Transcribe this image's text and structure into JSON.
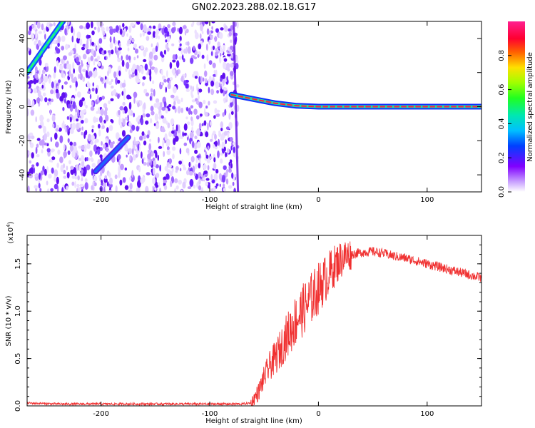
{
  "title": "GN02.2023.288.02.18.G17",
  "chart_data": [
    {
      "type": "heatmap",
      "xlabel": "Height of straight line (km)",
      "ylabel": "Frequency (Hz)",
      "xlim": [
        -268,
        150
      ],
      "ylim": [
        -50,
        50
      ],
      "xticks": [
        -200,
        -100,
        0,
        100
      ],
      "yticks": [
        -40,
        -20,
        0,
        20,
        40
      ],
      "colorbar": {
        "label": "Normalized spectral amplitude",
        "range": [
          0,
          1
        ],
        "ticks": [
          "0.0",
          "0.2",
          "0.4",
          "0.6",
          "0.8"
        ],
        "tick_values": [
          0,
          0.2,
          0.4,
          0.6,
          0.8
        ],
        "colormap": "rainbow"
      },
      "features": [
        {
          "name": "noise",
          "x_range": [
            -268,
            -74
          ],
          "y_range": [
            -50,
            50
          ]
        },
        {
          "x": [
            -268,
            -235
          ],
          "y": [
            20,
            50
          ]
        },
        {
          "x": [
            -205,
            -175
          ],
          "y": [
            -38,
            -18
          ]
        },
        {
          "x": [
            -80,
            -40,
            -20,
            0,
            150
          ],
          "y": [
            7,
            2,
            0.5,
            0,
            0
          ]
        }
      ]
    },
    {
      "type": "line",
      "xlabel": "Height of straight line (km)",
      "ylabel": "SNR (10 * v/v)",
      "yunit_label": "(x10",
      "yunit_exponent": "4",
      "ymultiplier_label": ")",
      "xlim": [
        -268,
        150
      ],
      "ylim": [
        0,
        1.8
      ],
      "xticks": [
        -200,
        -100,
        0,
        100
      ],
      "yticks": [
        0.0,
        0.5,
        1.0,
        1.5
      ],
      "ytick_labels": [
        "0.0",
        "0.5",
        "1.0",
        "1.5"
      ],
      "series": [
        {
          "color": "#f03030",
          "x": [
            -268,
            -240,
            -200,
            -150,
            -100,
            -70,
            -62,
            -55,
            -50,
            -45,
            -40,
            -35,
            -30,
            -25,
            -20,
            -15,
            -10,
            -5,
            0,
            5,
            10,
            15,
            20,
            25,
            30,
            40,
            50,
            60,
            70,
            80,
            90,
            100,
            110,
            120,
            130,
            140,
            150
          ],
          "y": [
            0.03,
            0.02,
            0.02,
            0.02,
            0.02,
            0.02,
            0.03,
            0.15,
            0.3,
            0.42,
            0.5,
            0.6,
            0.72,
            0.82,
            0.92,
            1.0,
            1.08,
            1.16,
            1.24,
            1.32,
            1.4,
            1.48,
            1.54,
            1.58,
            1.6,
            1.62,
            1.63,
            1.61,
            1.58,
            1.56,
            1.53,
            1.5,
            1.47,
            1.44,
            1.41,
            1.38,
            1.35
          ]
        }
      ]
    }
  ]
}
